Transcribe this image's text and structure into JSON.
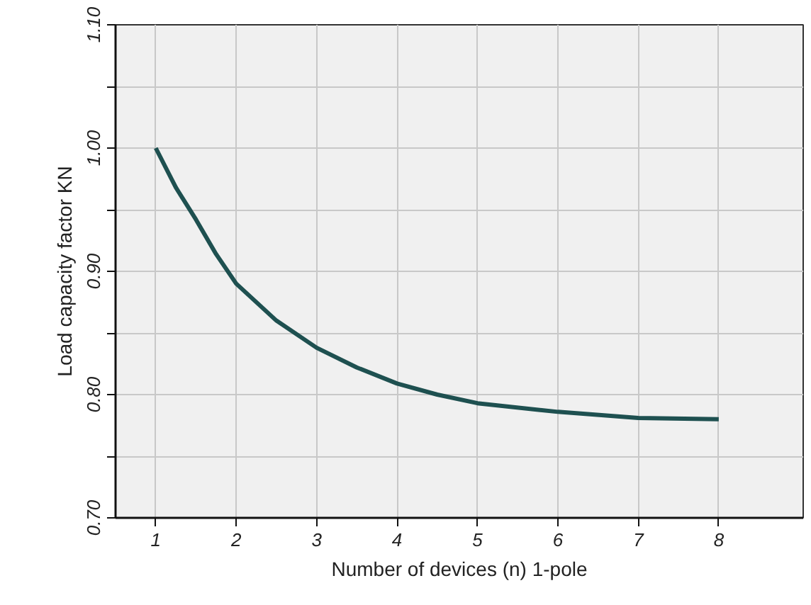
{
  "chart_data": {
    "type": "line",
    "xlabel": "Number of devices (n) 1-pole",
    "ylabel": "Load capacity factor KN",
    "x": [
      1,
      1.25,
      1.5,
      1.75,
      2,
      2.5,
      3,
      3.5,
      4,
      4.5,
      5,
      6,
      7,
      8
    ],
    "series": [
      {
        "color": "#1e5050",
        "values": [
          1.0,
          0.968,
          0.942,
          0.914,
          0.89,
          0.86,
          0.838,
          0.822,
          0.809,
          0.8,
          0.793,
          0.786,
          0.781,
          0.78
        ]
      }
    ],
    "xlim": [
      0.5,
      9.05
    ],
    "xticks": [
      1,
      2,
      3,
      4,
      5,
      6,
      7,
      8
    ],
    "ylim": [
      0.7,
      1.1
    ],
    "yticks": [
      {
        "value": 0.7,
        "label": "0.70"
      },
      {
        "value": 0.75,
        "label": null
      },
      {
        "value": 0.8,
        "label": "0.80"
      },
      {
        "value": 0.85,
        "label": null
      },
      {
        "value": 0.9,
        "label": "0.90"
      },
      {
        "value": 0.95,
        "label": null
      },
      {
        "value": 1.0,
        "label": "1.00"
      },
      {
        "value": 1.05,
        "label": null
      },
      {
        "value": 1.1,
        "label": "1.10"
      }
    ],
    "grid": true,
    "marker": "none",
    "line_style": "solid"
  }
}
